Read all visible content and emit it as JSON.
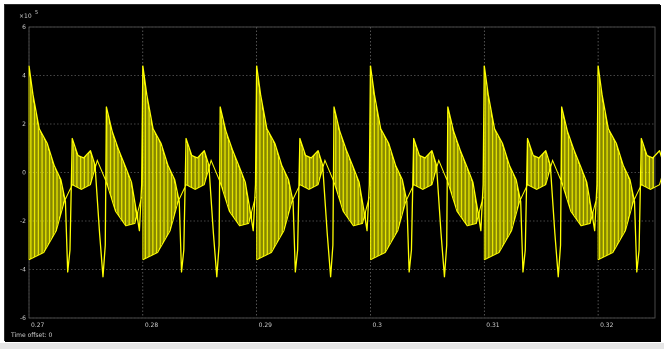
{
  "scope": {
    "time_offset_label": "Time offset:",
    "time_offset_value": "0",
    "y_multiplier": "×10",
    "y_exponent": "5"
  },
  "colors": {
    "background": "#000000",
    "trace": "#ffff00",
    "grid": "#8a8a8a",
    "text": "#d0d0d0"
  },
  "chart_data": {
    "type": "line",
    "title": "",
    "xlabel": "",
    "ylabel": "",
    "xlim": [
      0.27,
      0.325
    ],
    "ylim": [
      -6,
      6
    ],
    "x_ticks": [
      "0.27",
      "0.28",
      "0.29",
      "0.3",
      "0.31",
      "0.32"
    ],
    "y_ticks": [
      "6",
      "4",
      "2",
      "0",
      "-2",
      "-4",
      "-6"
    ],
    "grid": true,
    "series": [
      {
        "color": "#ffff00",
        "period": 0.01,
        "first_start": 0.27,
        "cycle": [
          {
            "x": 0.0,
            "y": 4.4
          },
          {
            "x": 0.00035,
            "y": 3.2
          },
          {
            "x": 0.0009,
            "y": 1.8
          },
          {
            "x": 0.0016,
            "y": 1.2
          },
          {
            "x": 0.0022,
            "y": 0.3
          },
          {
            "x": 0.0028,
            "y": -0.3
          },
          {
            "x": 0.0032,
            "y": -1.2
          },
          {
            "x": 0.0034,
            "y": -4.1
          },
          {
            "x": 0.0036,
            "y": -3.2
          },
          {
            "x": 0.0038,
            "y": 1.4
          },
          {
            "x": 0.0043,
            "y": 0.7
          },
          {
            "x": 0.0048,
            "y": 0.6
          },
          {
            "x": 0.0054,
            "y": 0.9
          },
          {
            "x": 0.0058,
            "y": 0.3
          },
          {
            "x": 0.0062,
            "y": -2.5
          },
          {
            "x": 0.0065,
            "y": -4.3
          },
          {
            "x": 0.0067,
            "y": -3.0
          },
          {
            "x": 0.0068,
            "y": 2.7
          },
          {
            "x": 0.0073,
            "y": 1.7
          },
          {
            "x": 0.0079,
            "y": 0.9
          },
          {
            "x": 0.0085,
            "y": 0.2
          },
          {
            "x": 0.009,
            "y": -0.4
          },
          {
            "x": 0.0094,
            "y": -1.5
          },
          {
            "x": 0.0097,
            "y": -2.4
          },
          {
            "x": 0.0099,
            "y": -0.5
          },
          {
            "x": 0.01,
            "y": 4.4
          }
        ],
        "envelope": [
          {
            "x": 0.0,
            "y": -3.6
          },
          {
            "x": 0.0013,
            "y": -3.3
          },
          {
            "x": 0.0024,
            "y": -2.4
          },
          {
            "x": 0.0031,
            "y": -1.2
          },
          {
            "x": 0.0038,
            "y": -0.5
          },
          {
            "x": 0.0046,
            "y": -0.7
          },
          {
            "x": 0.0054,
            "y": -0.5
          },
          {
            "x": 0.006,
            "y": 0.5
          },
          {
            "x": 0.0068,
            "y": -0.4
          },
          {
            "x": 0.0076,
            "y": -1.6
          },
          {
            "x": 0.0085,
            "y": -2.2
          },
          {
            "x": 0.0093,
            "y": -2.1
          },
          {
            "x": 0.0099,
            "y": -1.0
          }
        ],
        "burst_regions": [
          [
            0.0,
            0.0032
          ],
          [
            0.0038,
            0.0059
          ],
          [
            0.0068,
            0.0096
          ]
        ]
      }
    ]
  }
}
